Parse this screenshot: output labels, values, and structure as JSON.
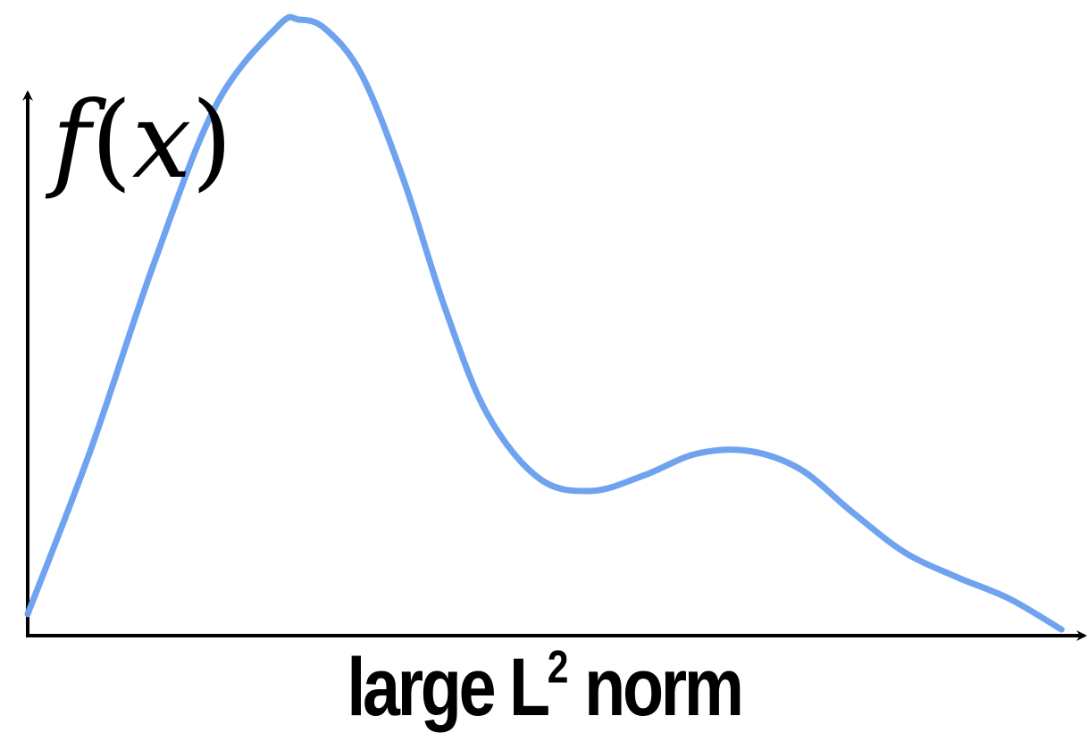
{
  "chart_data": {
    "type": "line",
    "title": "",
    "ylabel": "f(x)",
    "ylabel_parts": {
      "func": "f",
      "open": "(",
      "var": "x",
      "close": ")"
    },
    "caption": {
      "text_before": "large L",
      "superscript": "2",
      "text_after": " norm"
    },
    "xlim": [
      0,
      10
    ],
    "ylim": [
      0,
      10
    ],
    "grid": false,
    "axes": {
      "x_arrow": true,
      "y_arrow": true,
      "ticks": false
    },
    "series": [
      {
        "color": "#6fa3ef",
        "x": [
          0,
          0.6,
          1.2,
          1.8,
          2.4,
          2.6,
          2.85,
          3.2,
          3.6,
          4.0,
          4.4,
          4.9,
          5.4,
          5.9,
          6.4,
          6.9,
          7.4,
          7.9,
          8.4,
          8.9,
          9.4,
          9.9
        ],
        "y": [
          0.35,
          3.0,
          6.0,
          8.6,
          9.9,
          10.0,
          9.85,
          9.1,
          7.4,
          5.3,
          3.6,
          2.55,
          2.35,
          2.6,
          2.95,
          3.0,
          2.7,
          2.0,
          1.35,
          0.95,
          0.6,
          0.1
        ]
      }
    ]
  }
}
